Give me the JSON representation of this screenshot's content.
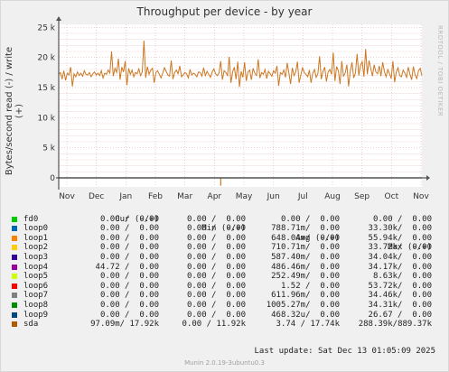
{
  "title": "Throughput per device - by year",
  "ylabel": "Bytes/second read (-) / write (+)",
  "watermark": "RRDTOOL / TOBI OETIKER",
  "chart_data": {
    "type": "line",
    "title": "Throughput per device - by year",
    "ylabel": "Bytes/second read (-) / write (+)",
    "ylim": [
      -1500,
      25500
    ],
    "y_ticks": [
      {
        "value": 0,
        "label": "0"
      },
      {
        "value": 5000,
        "label": "5 k"
      },
      {
        "value": 10000,
        "label": "10 k"
      },
      {
        "value": 15000,
        "label": "15 k"
      },
      {
        "value": 20000,
        "label": "20 k"
      },
      {
        "value": 25000,
        "label": "25 k"
      }
    ],
    "x_ticks": [
      "Nov",
      "Dec",
      "Jan",
      "Feb",
      "Mar",
      "Apr",
      "May",
      "Jun",
      "Jul",
      "Aug",
      "Sep",
      "Oct",
      "Nov"
    ],
    "grid": true,
    "series": [
      {
        "name": "sda",
        "color": "#CC7722",
        "values": [
          17200,
          17500,
          16400,
          17800,
          16200,
          17400,
          17100,
          18400,
          15200,
          17300,
          16800,
          17600,
          17000,
          17400,
          16900,
          17800,
          17200,
          17100,
          17500,
          16800,
          17300,
          17600,
          17100,
          17400,
          17000,
          17800,
          16600,
          17400,
          17200,
          17900,
          17400,
          21000,
          16900,
          18200,
          17500,
          19800,
          16300,
          18400,
          17600,
          19400,
          15400,
          18200,
          17200,
          17900,
          16800,
          17500,
          17300,
          18100,
          17000,
          17600,
          22800,
          16600,
          18500,
          17200,
          17900,
          18200,
          15800,
          17500,
          17800,
          17200,
          16600,
          17400,
          18300,
          17700,
          17100,
          16900,
          19500,
          16400,
          17500,
          17900,
          17300,
          18600,
          16800,
          17100,
          17500,
          17300,
          16600,
          18000,
          17100,
          17400,
          17200,
          16800,
          17600,
          17500,
          16900,
          18300,
          17000,
          17700,
          17200,
          16700,
          17600,
          18100,
          17300,
          17000,
          17400,
          19400,
          16300,
          17800,
          17500,
          17000,
          20100,
          15800,
          17600,
          18400,
          16400,
          19300,
          15100,
          17700,
          16700,
          19200,
          16100,
          17600,
          17900,
          16300,
          18200,
          17400,
          17000,
          19700,
          16600,
          17500,
          17200,
          18000,
          16500,
          17700,
          17300,
          16900,
          17800,
          17400,
          18600,
          15300,
          17500,
          17200,
          17900,
          16700,
          19100,
          17400,
          15600,
          18300,
          17000,
          17600,
          19300,
          15800,
          17100,
          18300,
          17500,
          17200,
          16800,
          17900,
          15800,
          17400,
          18000,
          16700,
          17300,
          20200,
          16400,
          17700,
          18400,
          16000,
          17600,
          18000,
          17200,
          20800,
          16100,
          18500,
          17800,
          15600,
          19400,
          16900,
          17400,
          18800,
          15200,
          17700,
          19200,
          16600,
          17400,
          20600,
          17000,
          18700,
          19300,
          16800,
          21400,
          17200,
          19500,
          18200,
          16900,
          18800,
          17600,
          17300,
          18600,
          16900,
          19200,
          17700,
          16800,
          18000,
          17300,
          16500,
          19400,
          15900,
          17600,
          18300,
          17000,
          16800,
          17900,
          17400,
          16700,
          18400,
          17200,
          16300,
          18500,
          17100,
          16500,
          17800,
          18200,
          17000
        ],
        "dips": [
          {
            "index": 95,
            "value": -1300
          }
        ]
      },
      {
        "name": "fd0",
        "color": "#00CC00",
        "values_note": "near zero"
      }
    ]
  },
  "legend": {
    "headers": {
      "cur": "Cur (-/+)",
      "min": "Min (-/+)",
      "avg": "Avg (-/+)",
      "max": "Max (-/+)"
    },
    "rows": [
      {
        "name": "fd0",
        "color": "#00CC00",
        "cur": "0.00 /  0.00",
        "min": "0.00 /  0.00",
        "avg": "0.00 /  0.00",
        "max": "0.00 /  0.00"
      },
      {
        "name": "loop0",
        "color": "#0066B3",
        "cur": "0.00 /  0.00",
        "min": "0.00 /  0.00",
        "avg": "788.71m/  0.00",
        "max": "33.30k/  0.00"
      },
      {
        "name": "loop1",
        "color": "#FF8000",
        "cur": "0.00 /  0.00",
        "min": "0.00 /  0.00",
        "avg": "648.04m/  0.00",
        "max": "55.94k/  0.00"
      },
      {
        "name": "loop2",
        "color": "#FFCC00",
        "cur": "0.00 /  0.00",
        "min": "0.00 /  0.00",
        "avg": "710.71m/  0.00",
        "max": "33.72k/  0.00"
      },
      {
        "name": "loop3",
        "color": "#330099",
        "cur": "0.00 /  0.00",
        "min": "0.00 /  0.00",
        "avg": "587.40m/  0.00",
        "max": "34.04k/  0.00"
      },
      {
        "name": "loop4",
        "color": "#990099",
        "cur": "44.72 /  0.00",
        "min": "0.00 /  0.00",
        "avg": "486.46m/  0.00",
        "max": "34.17k/  0.00"
      },
      {
        "name": "loop5",
        "color": "#CCFF00",
        "cur": "0.00 /  0.00",
        "min": "0.00 /  0.00",
        "avg": "252.49m/  0.00",
        "max": "8.63k/  0.00"
      },
      {
        "name": "loop6",
        "color": "#FF0000",
        "cur": "0.00 /  0.00",
        "min": "0.00 /  0.00",
        "avg": "1.52 /  0.00",
        "max": "53.72k/  0.00"
      },
      {
        "name": "loop7",
        "color": "#808080",
        "cur": "0.00 /  0.00",
        "min": "0.00 /  0.00",
        "avg": "611.96m/  0.00",
        "max": "34.46k/  0.00"
      },
      {
        "name": "loop8",
        "color": "#008F00",
        "cur": "0.00 /  0.00",
        "min": "0.00 /  0.00",
        "avg": "1005.27m/  0.00",
        "max": "34.31k/  0.00"
      },
      {
        "name": "loop9",
        "color": "#00487D",
        "cur": "0.00 /  0.00",
        "min": "0.00 /  0.00",
        "avg": "468.32u/  0.00",
        "max": "26.67 /  0.00"
      },
      {
        "name": "sda",
        "color": "#B35A00",
        "cur": "97.09m/ 17.92k",
        "min": "0.00 / 11.92k",
        "avg": "3.74 / 17.74k",
        "max": "288.39k/889.37k"
      }
    ]
  },
  "last_update": "Last update:  Sat Dec 13 01:05:09 2025",
  "footer": "Munin 2.0.19-3ubuntu0.3"
}
